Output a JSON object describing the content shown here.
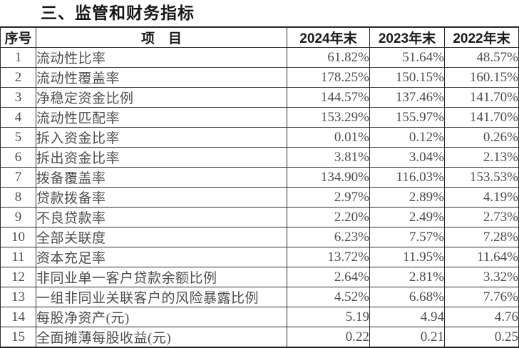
{
  "title": "三、监管和财务指标",
  "table": {
    "headers": {
      "no": "序号",
      "item": "项　目",
      "y2024": "2024年末",
      "y2023": "2023年末",
      "y2022": "2022年末"
    },
    "rows": [
      {
        "no": "1",
        "item": "流动性比率",
        "y2024": "61.82%",
        "y2023": "51.64%",
        "y2022": "48.57%"
      },
      {
        "no": "2",
        "item": "流动性覆盖率",
        "y2024": "178.25%",
        "y2023": "150.15%",
        "y2022": "160.15%"
      },
      {
        "no": "3",
        "item": "净稳定资金比例",
        "y2024": "144.57%",
        "y2023": "137.46%",
        "y2022": "141.70%"
      },
      {
        "no": "4",
        "item": "流动性匹配率",
        "y2024": "153.29%",
        "y2023": "155.97%",
        "y2022": "141.70%"
      },
      {
        "no": "5",
        "item": "拆入资金比率",
        "y2024": "0.01%",
        "y2023": "0.12%",
        "y2022": "0.26%"
      },
      {
        "no": "6",
        "item": "拆出资金比率",
        "y2024": "3.81%",
        "y2023": "3.04%",
        "y2022": "2.13%"
      },
      {
        "no": "7",
        "item": "拨备覆盖率",
        "y2024": "134.90%",
        "y2023": "116.03%",
        "y2022": "153.53%"
      },
      {
        "no": "8",
        "item": "贷款拨备率",
        "y2024": "2.97%",
        "y2023": "2.89%",
        "y2022": "4.19%"
      },
      {
        "no": "9",
        "item": "不良贷款率",
        "y2024": "2.20%",
        "y2023": "2.49%",
        "y2022": "2.73%"
      },
      {
        "no": "10",
        "item": "全部关联度",
        "y2024": "6.23%",
        "y2023": "7.57%",
        "y2022": "7.28%"
      },
      {
        "no": "11",
        "item": "资本充足率",
        "y2024": "13.72%",
        "y2023": "11.95%",
        "y2022": "11.64%"
      },
      {
        "no": "12",
        "item": "非同业单一客户贷款余额比例",
        "y2024": "2.64%",
        "y2023": "2.81%",
        "y2022": "3.32%"
      },
      {
        "no": "13",
        "item": "一组非同业关联客户的风险暴露比例",
        "y2024": "4.52%",
        "y2023": "6.68%",
        "y2022": "7.76%"
      },
      {
        "no": "14",
        "item": "每股净资产(元)",
        "y2024": "5.19",
        "y2023": "4.94",
        "y2022": "4.76"
      },
      {
        "no": "15",
        "item": "全面摊薄每股收益(元)",
        "y2024": "0.22",
        "y2023": "0.21",
        "y2022": "0.25"
      }
    ]
  },
  "colors": {
    "background": "#ffffff",
    "title_text": "#161616",
    "header_text": "#1c1c1c",
    "body_text": "#4e4e4e",
    "border": "#2e2e2e"
  }
}
